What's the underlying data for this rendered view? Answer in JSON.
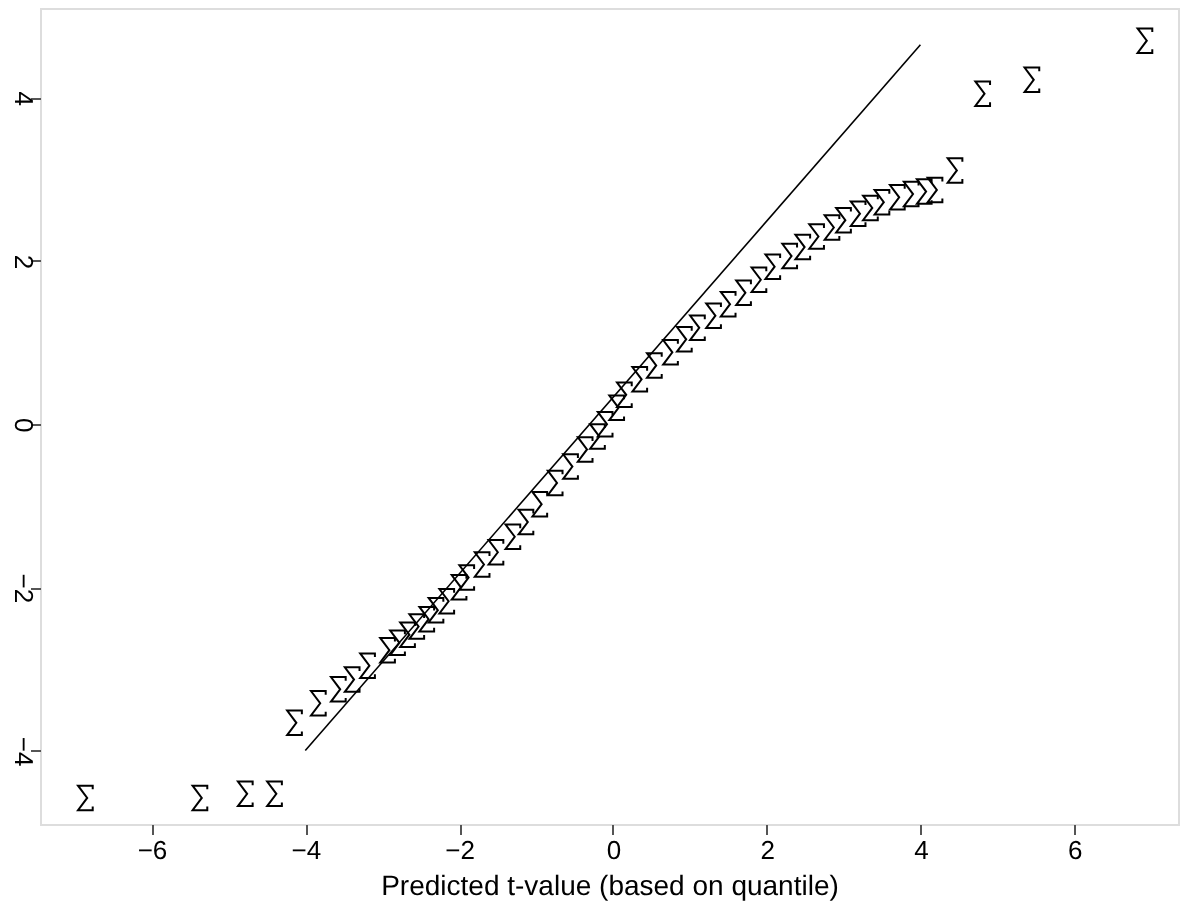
{
  "chart_data": {
    "type": "scatter",
    "xlabel": "Predicted t-value (based on quantile)",
    "xlim": [
      -7.45,
      7.35
    ],
    "ylim": [
      -4.9,
      5.1
    ],
    "xticks": [
      -6,
      -4,
      -2,
      0,
      2,
      4,
      6
    ],
    "yticks": [
      -4,
      -2,
      0,
      2,
      4
    ],
    "grid": false,
    "series": [
      {
        "color": "#000000",
        "x": [
          -6.86,
          -5.37,
          -4.78,
          -4.4,
          -4.14,
          -3.83,
          -3.57,
          -3.39,
          -3.19,
          -2.93,
          -2.8,
          -2.67,
          -2.55,
          -2.42,
          -2.3,
          -2.16,
          -2.0,
          -1.9,
          -1.7,
          -1.52,
          -1.3,
          -1.13,
          -0.95,
          -0.75,
          -0.55,
          -0.36,
          -0.2,
          -0.1,
          0.05,
          0.15,
          0.35,
          0.54,
          0.75,
          0.93,
          1.1,
          1.31,
          1.5,
          1.7,
          1.9,
          2.08,
          2.3,
          2.47,
          2.65,
          2.85,
          3.0,
          3.19,
          3.35,
          3.5,
          3.7,
          3.88,
          4.05,
          4.19,
          4.45,
          4.81,
          5.45,
          6.92
        ],
        "values": [
          -4.58,
          -4.58,
          -4.53,
          -4.53,
          -3.66,
          -3.42,
          -3.25,
          -3.13,
          -2.96,
          -2.77,
          -2.68,
          -2.58,
          -2.48,
          -2.39,
          -2.28,
          -2.17,
          -2.0,
          -1.88,
          -1.72,
          -1.57,
          -1.38,
          -1.2,
          -0.98,
          -0.72,
          -0.52,
          -0.31,
          -0.15,
          0.0,
          0.2,
          0.36,
          0.55,
          0.72,
          0.88,
          1.04,
          1.18,
          1.33,
          1.47,
          1.61,
          1.77,
          1.93,
          2.06,
          2.17,
          2.3,
          2.41,
          2.5,
          2.58,
          2.65,
          2.72,
          2.78,
          2.82,
          2.85,
          2.87,
          3.11,
          4.05,
          4.22,
          4.7
        ]
      },
      {
        "type": "line",
        "color": "#000000",
        "x": [
          -4,
          4
        ],
        "values": [
          -4.0,
          4.65
        ]
      }
    ]
  }
}
